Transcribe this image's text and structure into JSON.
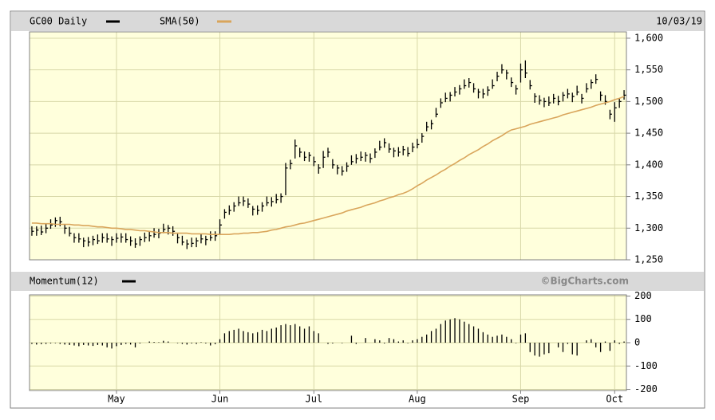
{
  "chart_data": [
    {
      "type": "ohlc",
      "date": "10/03/19",
      "ylim": [
        1250,
        1610
      ],
      "yticks": [
        {
          "value": 1250,
          "label": "1,250"
        },
        {
          "value": 1300,
          "label": "1,300"
        },
        {
          "value": 1350,
          "label": "1,350"
        },
        {
          "value": 1400,
          "label": "1,400"
        },
        {
          "value": 1450,
          "label": "1,450"
        },
        {
          "value": 1500,
          "label": "1,500"
        },
        {
          "value": 1550,
          "label": "1,550"
        },
        {
          "value": 1600,
          "label": "1,600"
        }
      ],
      "grid": true,
      "series": [
        {
          "name": "GC00 Daily",
          "color": "#000000",
          "values": [
            [
              1303,
              1288,
              1295
            ],
            [
              1303,
              1288,
              1297
            ],
            [
              1304,
              1289,
              1294
            ],
            [
              1307,
              1292,
              1300
            ],
            [
              1314,
              1299,
              1305
            ],
            [
              1317,
              1302,
              1312
            ],
            [
              1318,
              1303,
              1310
            ],
            [
              1306,
              1291,
              1300
            ],
            [
              1302,
              1287,
              1292
            ],
            [
              1292,
              1277,
              1285
            ],
            [
              1292,
              1277,
              1283
            ],
            [
              1285,
              1270,
              1280
            ],
            [
              1286,
              1271,
              1278
            ],
            [
              1288,
              1273,
              1282
            ],
            [
              1290,
              1275,
              1280
            ],
            [
              1292,
              1277,
              1285
            ],
            [
              1292,
              1277,
              1283
            ],
            [
              1287,
              1272,
              1282
            ],
            [
              1292,
              1277,
              1284
            ],
            [
              1292,
              1277,
              1286
            ],
            [
              1292,
              1277,
              1282
            ],
            [
              1287,
              1272,
              1280
            ],
            [
              1284,
              1269,
              1275
            ],
            [
              1287,
              1272,
              1282
            ],
            [
              1293,
              1278,
              1285
            ],
            [
              1294,
              1279,
              1288
            ],
            [
              1300,
              1285,
              1290
            ],
            [
              1299,
              1284,
              1292
            ],
            [
              1307,
              1292,
              1298
            ],
            [
              1305,
              1290,
              1300
            ],
            [
              1303,
              1288,
              1295
            ],
            [
              1291,
              1276,
              1285
            ],
            [
              1288,
              1273,
              1278
            ],
            [
              1282,
              1267,
              1275
            ],
            [
              1285,
              1270,
              1276
            ],
            [
              1285,
              1270,
              1280
            ],
            [
              1291,
              1276,
              1283
            ],
            [
              1288,
              1273,
              1282
            ],
            [
              1295,
              1280,
              1285
            ],
            [
              1295,
              1280,
              1288
            ],
            [
              1314,
              1290,
              1305
            ],
            [
              1330,
              1315,
              1325
            ],
            [
              1336,
              1321,
              1328
            ],
            [
              1341,
              1326,
              1335
            ],
            [
              1350,
              1335,
              1340
            ],
            [
              1350,
              1335,
              1343
            ],
            [
              1347,
              1332,
              1338
            ],
            [
              1335,
              1320,
              1330
            ],
            [
              1336,
              1321,
              1328
            ],
            [
              1341,
              1326,
              1335
            ],
            [
              1350,
              1335,
              1340
            ],
            [
              1349,
              1334,
              1342
            ],
            [
              1354,
              1339,
              1345
            ],
            [
              1355,
              1340,
              1350
            ],
            [
              1403,
              1352,
              1395
            ],
            [
              1408,
              1393,
              1402
            ],
            [
              1440,
              1410,
              1430
            ],
            [
              1427,
              1412,
              1420
            ],
            [
              1421,
              1406,
              1412
            ],
            [
              1420,
              1405,
              1415
            ],
            [
              1413,
              1398,
              1405
            ],
            [
              1401,
              1386,
              1395
            ],
            [
              1422,
              1395,
              1412
            ],
            [
              1427,
              1412,
              1420
            ],
            [
              1409,
              1394,
              1400
            ],
            [
              1400,
              1385,
              1395
            ],
            [
              1398,
              1383,
              1390
            ],
            [
              1404,
              1389,
              1398
            ],
            [
              1415,
              1400,
              1405
            ],
            [
              1417,
              1402,
              1410
            ],
            [
              1421,
              1406,
              1412
            ],
            [
              1420,
              1405,
              1415
            ],
            [
              1418,
              1403,
              1410
            ],
            [
              1426,
              1411,
              1420
            ],
            [
              1438,
              1423,
              1428
            ],
            [
              1442,
              1427,
              1435
            ],
            [
              1434,
              1419,
              1425
            ],
            [
              1427,
              1412,
              1422
            ],
            [
              1428,
              1413,
              1420
            ],
            [
              1430,
              1415,
              1424
            ],
            [
              1428,
              1413,
              1418
            ],
            [
              1435,
              1420,
              1428
            ],
            [
              1441,
              1426,
              1432
            ],
            [
              1450,
              1435,
              1445
            ],
            [
              1468,
              1453,
              1460
            ],
            [
              1471,
              1456,
              1465
            ],
            [
              1490,
              1475,
              1480
            ],
            [
              1505,
              1490,
              1498
            ],
            [
              1514,
              1499,
              1505
            ],
            [
              1515,
              1500,
              1510
            ],
            [
              1523,
              1508,
              1515
            ],
            [
              1526,
              1511,
              1520
            ],
            [
              1535,
              1520,
              1525
            ],
            [
              1537,
              1522,
              1530
            ],
            [
              1529,
              1514,
              1520
            ],
            [
              1520,
              1505,
              1515
            ],
            [
              1520,
              1505,
              1512
            ],
            [
              1524,
              1509,
              1518
            ],
            [
              1535,
              1520,
              1525
            ],
            [
              1547,
              1532,
              1540
            ],
            [
              1559,
              1544,
              1550
            ],
            [
              1550,
              1535,
              1545
            ],
            [
              1538,
              1523,
              1530
            ],
            [
              1526,
              1511,
              1520
            ],
            [
              1560,
              1530,
              1550
            ],
            [
              1565,
              1537,
              1545
            ],
            [
              1534,
              1519,
              1525
            ],
            [
              1513,
              1498,
              1508
            ],
            [
              1510,
              1495,
              1502
            ],
            [
              1506,
              1491,
              1500
            ],
            [
              1508,
              1493,
              1498
            ],
            [
              1512,
              1497,
              1505
            ],
            [
              1509,
              1494,
              1500
            ],
            [
              1515,
              1500,
              1510
            ],
            [
              1520,
              1505,
              1512
            ],
            [
              1514,
              1499,
              1508
            ],
            [
              1525,
              1510,
              1515
            ],
            [
              1512,
              1497,
              1505
            ],
            [
              1529,
              1514,
              1520
            ],
            [
              1535,
              1520,
              1530
            ],
            [
              1543,
              1528,
              1535
            ],
            [
              1516,
              1501,
              1510
            ],
            [
              1510,
              1495,
              1500
            ],
            [
              1487,
              1472,
              1480
            ],
            [
              1499,
              1468,
              1490
            ],
            [
              1505,
              1490,
              1500
            ],
            [
              1518,
              1503,
              1510
            ]
          ]
        },
        {
          "name": "SMA(50)",
          "color": "#d9a55b",
          "values": [
            1308,
            1308,
            1307,
            1307,
            1307,
            1306,
            1306,
            1306,
            1306,
            1305,
            1305,
            1304,
            1304,
            1303,
            1302,
            1302,
            1301,
            1300,
            1300,
            1299,
            1298,
            1298,
            1297,
            1296,
            1296,
            1295,
            1294,
            1293,
            1293,
            1293,
            1292,
            1292,
            1292,
            1292,
            1291,
            1291,
            1291,
            1291,
            1290,
            1290,
            1290,
            1290,
            1290,
            1291,
            1291,
            1292,
            1292,
            1293,
            1293,
            1294,
            1295,
            1297,
            1298,
            1300,
            1302,
            1303,
            1305,
            1307,
            1308,
            1310,
            1312,
            1314,
            1316,
            1318,
            1320,
            1322,
            1324,
            1327,
            1329,
            1331,
            1333,
            1336,
            1338,
            1340,
            1343,
            1345,
            1348,
            1350,
            1353,
            1355,
            1358,
            1362,
            1367,
            1371,
            1376,
            1380,
            1384,
            1389,
            1393,
            1398,
            1402,
            1407,
            1411,
            1416,
            1420,
            1424,
            1429,
            1433,
            1438,
            1442,
            1446,
            1451,
            1455,
            1457,
            1459,
            1461,
            1464,
            1466,
            1468,
            1470,
            1472,
            1474,
            1476,
            1479,
            1481,
            1483,
            1485,
            1487,
            1489,
            1491,
            1494,
            1496,
            1498,
            1500,
            1503,
            1505,
            1508
          ]
        }
      ]
    },
    {
      "type": "bar",
      "credit": "©BigCharts.com",
      "ylim": [
        -205,
        205
      ],
      "yticks": [
        -200,
        -100,
        0,
        100,
        200
      ],
      "grid": true,
      "categories": [
        null,
        null,
        null,
        null,
        null,
        null,
        null,
        null,
        null,
        null,
        null,
        null,
        null,
        null,
        null,
        null,
        null,
        null,
        "May",
        null,
        null,
        null,
        null,
        null,
        null,
        null,
        null,
        null,
        null,
        null,
        null,
        null,
        null,
        null,
        null,
        null,
        null,
        null,
        null,
        null,
        "Jun",
        null,
        null,
        null,
        null,
        null,
        null,
        null,
        null,
        null,
        null,
        null,
        null,
        null,
        null,
        null,
        null,
        null,
        null,
        null,
        "Jul",
        null,
        null,
        null,
        null,
        null,
        null,
        null,
        null,
        null,
        null,
        null,
        null,
        null,
        null,
        null,
        null,
        null,
        null,
        null,
        null,
        null,
        "Aug",
        null,
        null,
        null,
        null,
        null,
        null,
        null,
        null,
        null,
        null,
        null,
        null,
        null,
        null,
        null,
        null,
        null,
        null,
        null,
        null,
        null,
        "Sep",
        null,
        null,
        null,
        null,
        null,
        null,
        null,
        null,
        null,
        null,
        null,
        null,
        null,
        null,
        null,
        null,
        null,
        null,
        null,
        "Oct",
        null,
        null
      ],
      "series": [
        {
          "name": "Momentum(12)",
          "color": "#000000",
          "values": [
            -5,
            -8,
            -6,
            -5,
            -3,
            -2,
            -5,
            -8,
            -10,
            -12,
            -15,
            -10,
            -12,
            -14,
            -10,
            -12,
            -20,
            -25,
            -15,
            -10,
            -5,
            -8,
            -20,
            -3,
            0,
            5,
            3,
            2,
            8,
            5,
            0,
            -2,
            -5,
            -8,
            -3,
            -5,
            2,
            -3,
            -12,
            -6,
            15,
            40,
            50,
            55,
            60,
            50,
            45,
            40,
            45,
            55,
            50,
            60,
            65,
            75,
            80,
            75,
            80,
            70,
            60,
            70,
            50,
            40,
            0,
            -5,
            -3,
            0,
            -2,
            0,
            30,
            -5,
            0,
            20,
            0,
            15,
            10,
            -3,
            20,
            15,
            5,
            10,
            -2,
            10,
            15,
            25,
            35,
            50,
            60,
            80,
            95,
            100,
            105,
            100,
            90,
            80,
            70,
            60,
            45,
            35,
            25,
            30,
            35,
            25,
            15,
            -2,
            35,
            40,
            -40,
            -55,
            -60,
            -50,
            -45,
            0,
            -20,
            -40,
            -5,
            -50,
            -55,
            0,
            10,
            15,
            -20,
            -40,
            5,
            -35,
            10,
            -5,
            5
          ]
        }
      ]
    }
  ]
}
